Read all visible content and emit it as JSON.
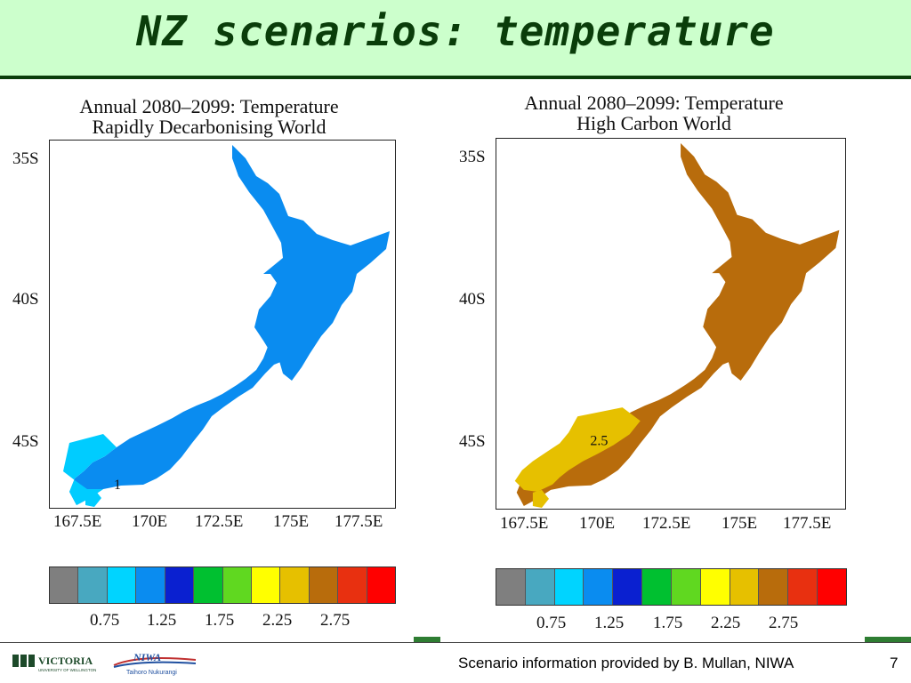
{
  "header": {
    "title": "NZ scenarios: temperature"
  },
  "maps": [
    {
      "title_line1": "Annual 2080–2099: Temperature",
      "title_line2": "Rapidly Decarbonising World",
      "fill_color": "#0a8cf0",
      "south_fill_color": "#00ccff",
      "contour_label": "1"
    },
    {
      "title_line1": "Annual 2080–2099: Temperature",
      "title_line2": "High Carbon World",
      "fill_color": "#b86c0c",
      "south_fill_color": "#e6c000",
      "contour_label": "2.5"
    }
  ],
  "axes": {
    "lat_labels": [
      "35S",
      "40S",
      "45S"
    ],
    "lon_labels": [
      "167.5E",
      "170E",
      "172.5E",
      "175E",
      "177.5E"
    ]
  },
  "legend": {
    "colors": [
      "#7f7f7f",
      "#48a8c0",
      "#00d4ff",
      "#0a8cf0",
      "#0a20d0",
      "#00c030",
      "#60d820",
      "#ffff00",
      "#e6c000",
      "#b86c0c",
      "#e83010",
      "#ff0000"
    ],
    "labels": [
      "0.75",
      "1.25",
      "1.75",
      "2.25",
      "2.75"
    ]
  },
  "footer": {
    "credit": "Scenario information provided by B. Mullan, NIWA",
    "page_number": "7",
    "logo_victoria": "VICTORIA",
    "logo_victoria_sub": "UNIVERSITY OF WELLINGTON",
    "logo_niwa": "NIWA",
    "logo_niwa_sub": "Taihoro Nukurangi"
  }
}
